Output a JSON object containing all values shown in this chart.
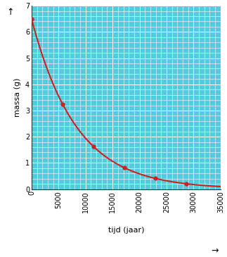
{
  "title": "",
  "xlabel": "tijd (jaar)",
  "ylabel": "massa (g)",
  "half_life": 5736,
  "initial_mass": 6.5,
  "x_max": 35000,
  "y_max": 7,
  "x_ticks": [
    0,
    5000,
    10000,
    15000,
    20000,
    25000,
    30000,
    35000
  ],
  "y_ticks": [
    0,
    1,
    2,
    3,
    4,
    5,
    6,
    7
  ],
  "data_points_x": [
    0,
    5736,
    11472,
    17208,
    22944,
    28680
  ],
  "curve_color": "#cc2222",
  "point_color": "#cc2222",
  "grid_bg": "#55ccdd",
  "axis_color": "#333333",
  "figsize": [
    3.23,
    3.65
  ],
  "dpi": 100
}
